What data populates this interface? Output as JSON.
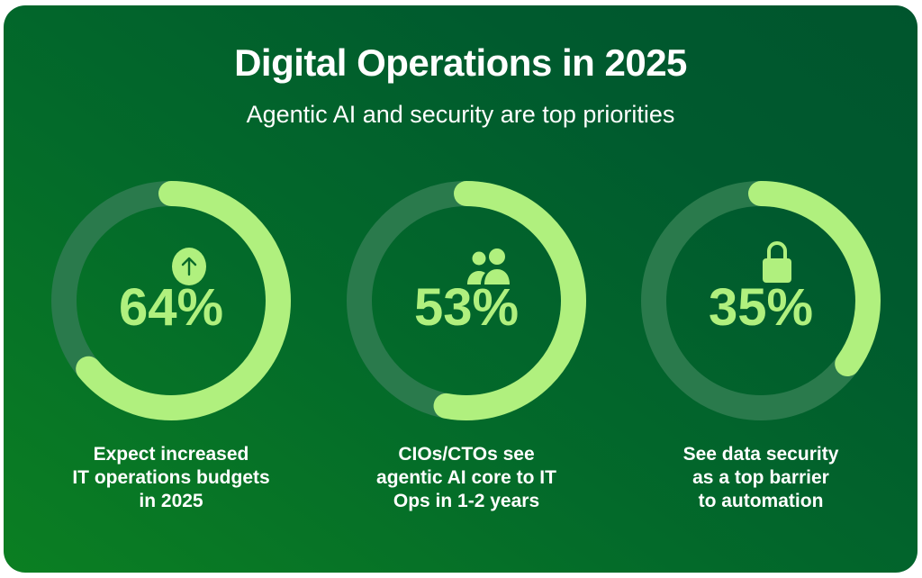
{
  "title": "Digital Operations in 2025",
  "subtitle": "Agentic AI and security are top priorities",
  "colors": {
    "accent": "#b0f07e",
    "track": "#2a7a4c",
    "icon_fg": "#0a6a2a"
  },
  "chart_data": {
    "type": "pie",
    "title": "Digital Operations in 2025",
    "subtitle": "Agentic AI and security are top priorities",
    "items": [
      {
        "value": 64,
        "label": "64%",
        "icon": "arrow-up-circle-icon",
        "caption": [
          "Expect increased",
          "IT operations budgets",
          "in 2025"
        ]
      },
      {
        "value": 53,
        "label": "53%",
        "icon": "users-icon",
        "caption": [
          "CIOs/CTOs see",
          "agentic AI core to IT",
          "Ops in 1-2 years"
        ]
      },
      {
        "value": 35,
        "label": "35%",
        "icon": "lock-icon",
        "caption": [
          "See data security",
          "as a top barrier",
          "to automation"
        ]
      }
    ]
  }
}
